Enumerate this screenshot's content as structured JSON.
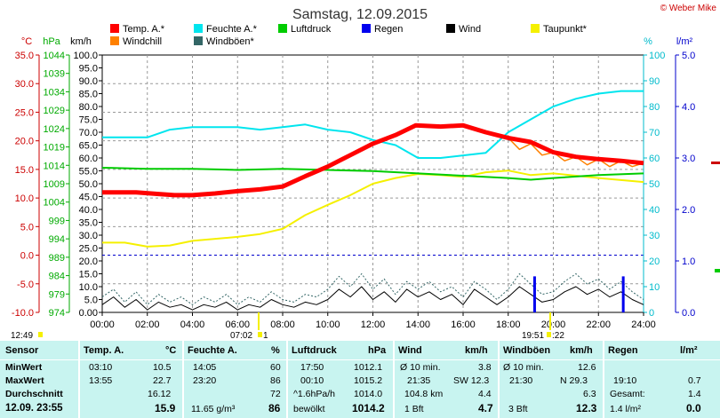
{
  "title": "Samstag, 12.09.2015",
  "copyright": "© Weber Mike",
  "colors": {
    "temp": "#ff0000",
    "humidity": "#00e5ee",
    "pressure": "#00cc00",
    "rain": "#0000ee",
    "wind": "#000000",
    "dewpoint": "#f5f000",
    "windchill": "#ff8000",
    "gust": "#336666"
  },
  "legend": [
    {
      "label": "Temp. A.*",
      "color": "#ff0000"
    },
    {
      "label": "Feuchte A.*",
      "color": "#00e5ee"
    },
    {
      "label": "Luftdruck",
      "color": "#00cc00"
    },
    {
      "label": "Regen",
      "color": "#0000ee"
    },
    {
      "label": "Wind",
      "color": "#000000"
    },
    {
      "label": "Taupunkt*",
      "color": "#f5f000"
    },
    {
      "label": "Windchill",
      "color": "#ff8000"
    },
    {
      "label": "Windböen*",
      "color": "#336666"
    }
  ],
  "axis_units": {
    "temp": "°C",
    "pressure": "hPa",
    "wind": "km/h",
    "humidity": "%",
    "rain": "l/m²"
  },
  "chart_data": {
    "type": "line",
    "xlabels": [
      "00:00",
      "02:00",
      "04:00",
      "06:00",
      "08:00",
      "10:00",
      "12:00",
      "14:00",
      "16:00",
      "18:00",
      "20:00",
      "22:00",
      "24:00"
    ],
    "temp_ticks": [
      "35.0",
      "30.0",
      "25.0",
      "20.0",
      "15.0",
      "10.0",
      "5.0",
      "0.0",
      "-5.0",
      "-10.0"
    ],
    "pressure_ticks": [
      "1044",
      "1039",
      "1034",
      "1029",
      "1024",
      "1019",
      "1014",
      "1009",
      "1004",
      "999",
      "994",
      "989",
      "984",
      "979",
      "974"
    ],
    "wind_ticks": [
      "100.0",
      "95.0",
      "90.0",
      "85.0",
      "80.0",
      "75.0",
      "70.0",
      "65.0",
      "60.0",
      "55.0",
      "50.0",
      "45.0",
      "40.0",
      "35.0",
      "30.0",
      "25.0",
      "20.0",
      "15.0",
      "10.0",
      "5.0",
      "0.00"
    ],
    "humidity_ticks": [
      "100",
      "90",
      "80",
      "70",
      "60",
      "50",
      "40",
      "30",
      "20",
      "10",
      "0"
    ],
    "rain_ticks": [
      "5.0",
      "4.0",
      "3.0",
      "2.0",
      "1.0",
      "0.0"
    ],
    "temp_range": [
      -10,
      35
    ],
    "wind_range": [
      0,
      100
    ],
    "humidity_range": [
      0,
      100
    ],
    "rain_range": [
      0,
      5
    ],
    "series": [
      {
        "name": "Temp. A.*",
        "color": "#ff0000",
        "axis": "temp",
        "points": [
          [
            0,
            11.0
          ],
          [
            1.5,
            11.0
          ],
          [
            2.5,
            10.7
          ],
          [
            3.2,
            10.5
          ],
          [
            4,
            10.5
          ],
          [
            5,
            10.8
          ],
          [
            6,
            11.2
          ],
          [
            7,
            11.5
          ],
          [
            8,
            12.0
          ],
          [
            9,
            13.8
          ],
          [
            10,
            15.5
          ],
          [
            11,
            17.5
          ],
          [
            12,
            19.5
          ],
          [
            13,
            21.0
          ],
          [
            13.9,
            22.7
          ],
          [
            15,
            22.5
          ],
          [
            16,
            22.7
          ],
          [
            17,
            21.5
          ],
          [
            18,
            20.5
          ],
          [
            19,
            19.8
          ],
          [
            20,
            18.0
          ],
          [
            21,
            17.2
          ],
          [
            22,
            16.8
          ],
          [
            23,
            16.5
          ],
          [
            24,
            16.1
          ]
        ]
      },
      {
        "name": "Feuchte A.*",
        "color": "#00e5ee",
        "axis": "humidity",
        "points": [
          [
            0,
            68
          ],
          [
            2,
            68
          ],
          [
            3,
            71
          ],
          [
            4,
            72
          ],
          [
            6,
            72
          ],
          [
            7,
            71
          ],
          [
            8,
            72
          ],
          [
            9,
            73
          ],
          [
            10,
            71
          ],
          [
            11,
            70
          ],
          [
            12,
            67
          ],
          [
            13,
            65
          ],
          [
            14,
            60
          ],
          [
            15,
            60
          ],
          [
            16,
            61
          ],
          [
            17,
            62
          ],
          [
            18,
            70
          ],
          [
            19,
            75
          ],
          [
            20,
            80
          ],
          [
            21,
            83
          ],
          [
            22,
            85
          ],
          [
            23,
            86
          ],
          [
            24,
            86
          ]
        ]
      },
      {
        "name": "Luftdruck",
        "color": "#00cc00",
        "axis": "temp",
        "points": [
          [
            0,
            15.3
          ],
          [
            2,
            15.1
          ],
          [
            4,
            15.1
          ],
          [
            6,
            14.9
          ],
          [
            8,
            15.1
          ],
          [
            10,
            14.9
          ],
          [
            12,
            14.7
          ],
          [
            14,
            14.3
          ],
          [
            16,
            13.9
          ],
          [
            18,
            13.5
          ],
          [
            19,
            13.2
          ],
          [
            20,
            13.5
          ],
          [
            22,
            14.0
          ],
          [
            24,
            14.3
          ]
        ]
      },
      {
        "name": "Taupunkt*",
        "color": "#f5f000",
        "axis": "temp",
        "points": [
          [
            0,
            2.2
          ],
          [
            1,
            2.2
          ],
          [
            2,
            1.5
          ],
          [
            3,
            1.7
          ],
          [
            4,
            2.5
          ],
          [
            6,
            3.2
          ],
          [
            7,
            3.7
          ],
          [
            8,
            4.6
          ],
          [
            9,
            7.0
          ],
          [
            10,
            8.8
          ],
          [
            11,
            10.5
          ],
          [
            12,
            12.5
          ],
          [
            13,
            13.5
          ],
          [
            14,
            14.2
          ],
          [
            15,
            14.0
          ],
          [
            16,
            13.7
          ],
          [
            17,
            14.5
          ],
          [
            18,
            14.8
          ],
          [
            19,
            14.0
          ],
          [
            20,
            14.3
          ],
          [
            22,
            13.5
          ],
          [
            24,
            12.8
          ]
        ]
      },
      {
        "name": "Windchill",
        "color": "#ff8000",
        "axis": "temp",
        "points": [
          [
            18,
            20.5
          ],
          [
            18.5,
            18.5
          ],
          [
            19,
            19.5
          ],
          [
            19.5,
            17.5
          ],
          [
            20,
            18.0
          ],
          [
            20.5,
            16.5
          ],
          [
            21,
            17.2
          ],
          [
            21.5,
            15.8
          ],
          [
            22,
            16.8
          ],
          [
            22.5,
            15.5
          ],
          [
            23,
            16.5
          ],
          [
            23.5,
            15.5
          ],
          [
            24,
            16.1
          ]
        ]
      },
      {
        "name": "Wind",
        "color": "#000000",
        "axis": "wind",
        "points": [
          [
            0,
            3
          ],
          [
            0.5,
            6
          ],
          [
            1,
            2
          ],
          [
            1.5,
            5
          ],
          [
            2,
            1
          ],
          [
            2.5,
            4
          ],
          [
            3,
            2
          ],
          [
            3.5,
            3
          ],
          [
            4,
            1
          ],
          [
            4.5,
            3
          ],
          [
            5,
            2
          ],
          [
            5.5,
            4
          ],
          [
            6,
            1
          ],
          [
            6.5,
            3
          ],
          [
            7,
            2
          ],
          [
            7.5,
            5
          ],
          [
            8,
            3
          ],
          [
            8.5,
            2
          ],
          [
            9,
            4
          ],
          [
            9.5,
            3
          ],
          [
            10,
            5
          ],
          [
            10.5,
            9
          ],
          [
            11,
            6
          ],
          [
            11.5,
            10
          ],
          [
            12,
            5
          ],
          [
            12.5,
            8
          ],
          [
            13,
            4
          ],
          [
            13.5,
            9
          ],
          [
            14,
            6
          ],
          [
            14.5,
            8
          ],
          [
            15,
            5
          ],
          [
            15.5,
            7
          ],
          [
            16,
            3
          ],
          [
            16.5,
            9
          ],
          [
            17,
            6
          ],
          [
            17.5,
            3
          ],
          [
            18,
            6
          ],
          [
            18.5,
            10
          ],
          [
            19,
            7
          ],
          [
            19.5,
            4
          ],
          [
            20,
            5
          ],
          [
            20.5,
            8
          ],
          [
            21,
            10
          ],
          [
            21.5,
            7
          ],
          [
            22,
            9
          ],
          [
            22.5,
            6
          ],
          [
            23,
            8
          ],
          [
            23.5,
            5
          ],
          [
            24,
            3
          ]
        ]
      },
      {
        "name": "Windböen*",
        "color": "#336666",
        "axis": "wind",
        "points": [
          [
            0,
            6
          ],
          [
            0.5,
            9
          ],
          [
            1,
            4
          ],
          [
            1.5,
            8
          ],
          [
            2,
            3
          ],
          [
            2.5,
            7
          ],
          [
            3,
            4
          ],
          [
            3.5,
            6
          ],
          [
            4,
            3
          ],
          [
            4.5,
            6
          ],
          [
            5,
            4
          ],
          [
            5.5,
            7
          ],
          [
            6,
            3
          ],
          [
            6.5,
            6
          ],
          [
            7,
            4
          ],
          [
            7.5,
            8
          ],
          [
            8,
            5
          ],
          [
            8.5,
            4
          ],
          [
            9,
            7
          ],
          [
            9.5,
            6
          ],
          [
            10,
            9
          ],
          [
            10.5,
            14
          ],
          [
            11,
            10
          ],
          [
            11.5,
            15
          ],
          [
            12,
            9
          ],
          [
            12.5,
            13
          ],
          [
            13,
            7
          ],
          [
            13.5,
            12
          ],
          [
            14,
            9
          ],
          [
            14.5,
            12
          ],
          [
            15,
            8
          ],
          [
            15.5,
            10
          ],
          [
            16,
            6
          ],
          [
            16.5,
            12
          ],
          [
            17,
            9
          ],
          [
            17.5,
            5
          ],
          [
            18,
            9
          ],
          [
            18.5,
            15
          ],
          [
            19,
            11
          ],
          [
            19.5,
            7
          ],
          [
            20,
            8
          ],
          [
            20.5,
            12
          ],
          [
            21,
            15
          ],
          [
            21.5,
            11
          ],
          [
            22,
            13
          ],
          [
            22.5,
            9
          ],
          [
            23,
            12
          ],
          [
            23.5,
            8
          ],
          [
            24,
            5
          ]
        ]
      }
    ],
    "rain_bars": [
      {
        "time": 19.17,
        "value": 0.7
      },
      {
        "time": 23.1,
        "value": 0.7
      }
    ],
    "zero_line": {
      "axis": "temp",
      "value": 0
    }
  },
  "sunrise": "07:02",
  "sunset": "19:51",
  "sunset_suffix": ":22",
  "time_marker_left": "12:49",
  "stats": {
    "headers": {
      "sensor": "Sensor",
      "temp": "Temp. A.",
      "temp_unit": "°C",
      "hum": "Feuchte A.",
      "hum_unit": "%",
      "pres": "Luftdruck",
      "pres_unit": "hPa",
      "wind": "Wind",
      "wind_unit": "km/h",
      "gust": "Windböen",
      "gust_unit": "km/h",
      "rain": "Regen",
      "rain_unit": "l/m²"
    },
    "rows": [
      {
        "label": "MinWert",
        "temp_time": "03:10",
        "temp_val": "10.5",
        "hum_time": "14:05",
        "hum_val": "60",
        "pres_time": "17:50",
        "pres_val": "1012.1",
        "wind_time": "Ø 10 min.",
        "wind_val": "3.8",
        "gust_time": "Ø 10 min.",
        "gust_val": "12.6",
        "rain_time": "",
        "rain_val": ""
      },
      {
        "label": "MaxWert",
        "temp_time": "13:55",
        "temp_val": "22.7",
        "hum_time": "23:20",
        "hum_val": "86",
        "pres_time": "00:10",
        "pres_val": "1015.2",
        "wind_time": "21:35",
        "wind_dir": "SW 12.3",
        "wind_val": "",
        "gust_time": "21:30",
        "gust_val": "N 29.3",
        "rain_time": "19:10",
        "rain_val": "0.7"
      },
      {
        "label": "Durchschnitt",
        "temp_time": "",
        "temp_val": "16.12",
        "hum_time": "",
        "hum_val": "72",
        "pres_time": "^1.6hPa/h",
        "pres_val": "1014.0",
        "wind_time": "104.8 km",
        "wind_val": "4.4",
        "gust_time": "",
        "gust_val": "6.3",
        "rain_time": "Gesamt:",
        "rain_val": "1.4"
      },
      {
        "label": "12.09.  23:55",
        "temp_time": "",
        "temp_val": "15.9",
        "hum_time": "11.65 g/m³",
        "hum_val": "86",
        "pres_time": "bewölkt",
        "pres_val": "1014.2",
        "wind_time": "1 Bft",
        "wind_val": "4.7",
        "gust_time": "3 Bft",
        "gust_val": "12.3",
        "rain_time": "1.4 l/m²",
        "rain_val": "0.0"
      }
    ]
  }
}
